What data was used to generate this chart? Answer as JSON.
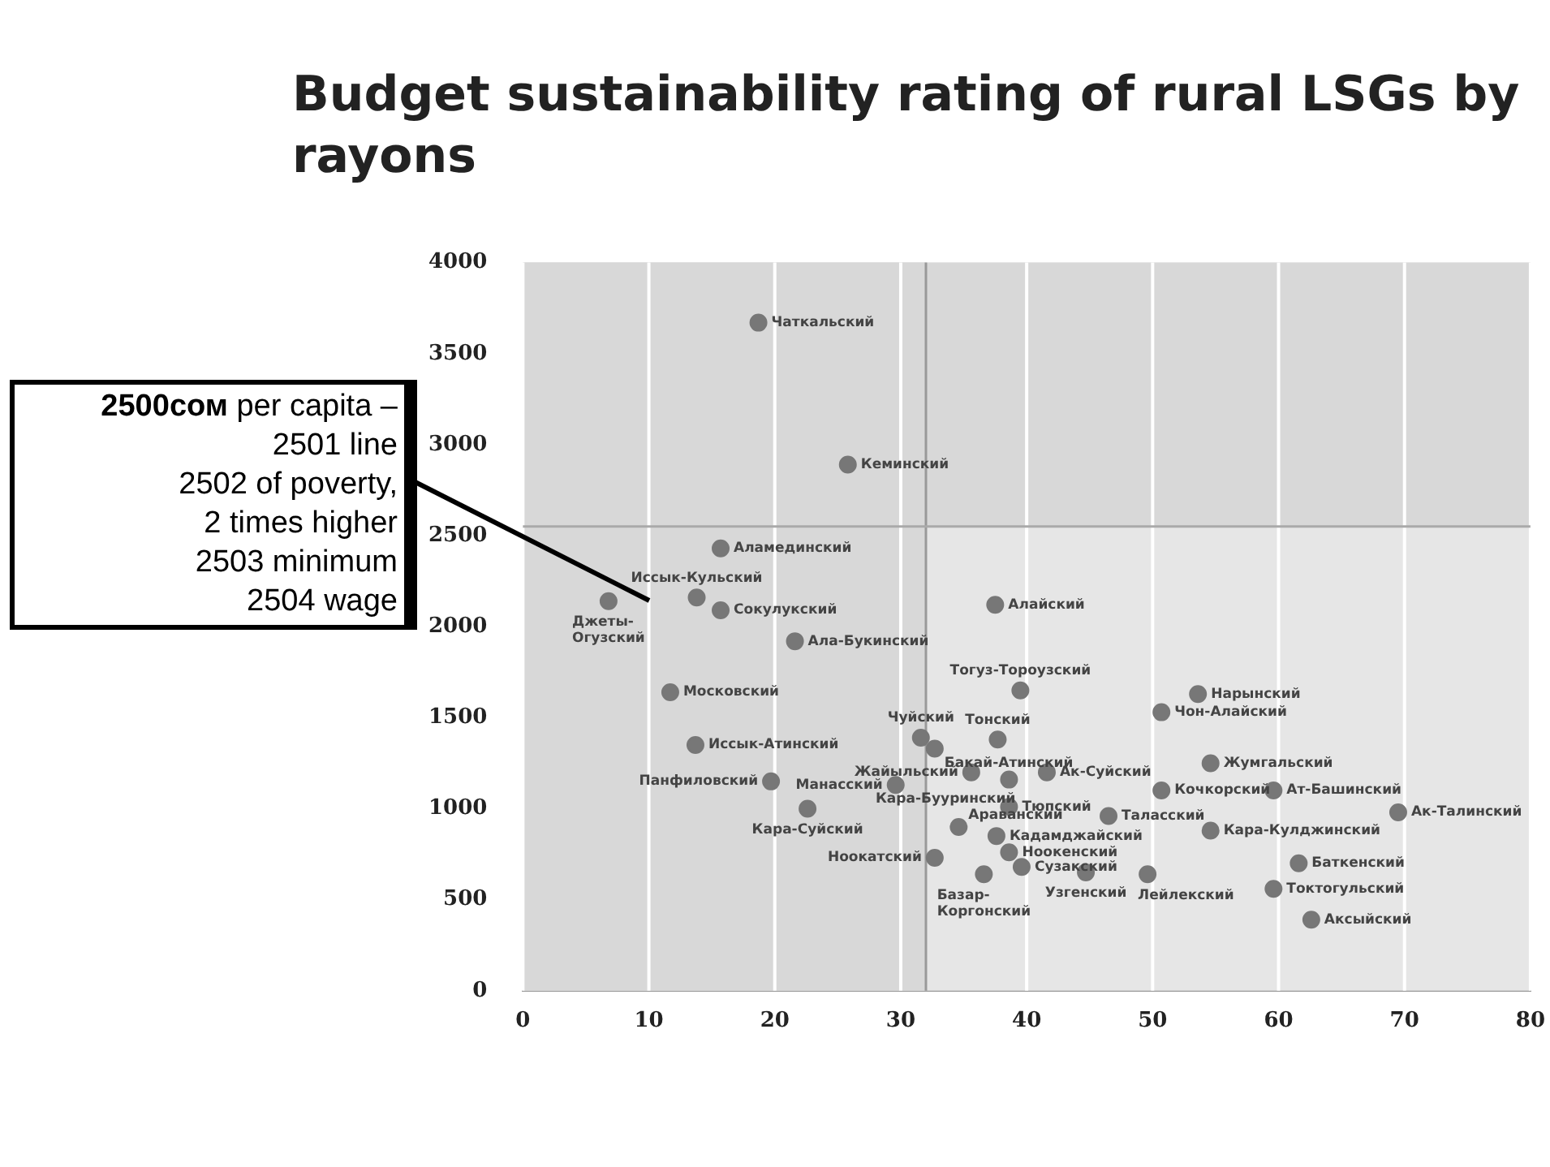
{
  "chart_data": {
    "type": "scatter",
    "title": "Budget sustainability rating of rural LSGs by rayons",
    "x": [
      18.7,
      25.8,
      15.7,
      13.8,
      6.8,
      15.7,
      21.6,
      11.7,
      13.7,
      19.7,
      29.6,
      22.6,
      31.6,
      32.7,
      35.6,
      32.7,
      34.6,
      37.5,
      39.5,
      53.6,
      50.7,
      37.7,
      41.6,
      38.6,
      38.6,
      46.5,
      37.6,
      38.6,
      39.6,
      36.6,
      44.7,
      49.6,
      54.6,
      50.7,
      59.6,
      54.6,
      69.5,
      61.6,
      59.6,
      62.6
    ],
    "series": [
      {
        "color": "#777777",
        "values": [
          3670,
          2890,
          2430,
          2160,
          2140,
          2090,
          1920,
          1640,
          1350,
          1150,
          1130,
          1000,
          1390,
          1330,
          1200,
          730,
          900,
          2120,
          1650,
          1630,
          1530,
          1380,
          1200,
          1160,
          1010,
          960,
          850,
          760,
          680,
          640,
          650,
          640,
          1250,
          1100,
          1100,
          880,
          980,
          700,
          560,
          390
        ]
      }
    ],
    "annotations": [
      {
        "text": "Чаткальский",
        "x": 18.7,
        "y": 3670
      },
      {
        "text": "Кеминский",
        "x": 25.8,
        "y": 2890
      },
      {
        "text": "Аламединский",
        "x": 15.7,
        "y": 2430
      },
      {
        "text": "Иссык-Кульский",
        "x": 13.8,
        "y": 2160
      },
      {
        "text": "Джеты-\nОгузский",
        "x": 6.8,
        "y": 2140
      },
      {
        "text": "Сокулукский",
        "x": 15.7,
        "y": 2090
      },
      {
        "text": "Ала-Букинский",
        "x": 21.6,
        "y": 1920
      },
      {
        "text": "Московский",
        "x": 11.7,
        "y": 1640
      },
      {
        "text": "Иссык-Атинский",
        "x": 13.7,
        "y": 1350
      },
      {
        "text": "Панфиловский",
        "x": 19.7,
        "y": 1150
      },
      {
        "text": "Манасский",
        "x": 29.6,
        "y": 1130
      },
      {
        "text": "Кара-Суйский",
        "x": 22.6,
        "y": 1000
      },
      {
        "text": "Чуйский",
        "x": 31.6,
        "y": 1390
      },
      {
        "text": "Бакай-Атинский",
        "x": 32.7,
        "y": 1330
      },
      {
        "text": "Жайыльский",
        "x": 35.6,
        "y": 1200
      },
      {
        "text": "Ноокатский",
        "x": 32.7,
        "y": 730
      },
      {
        "text": "Араванский",
        "x": 34.6,
        "y": 900
      },
      {
        "text": "Алайский",
        "x": 37.5,
        "y": 2120
      },
      {
        "text": "Тогуз-Тороузский",
        "x": 39.5,
        "y": 1650
      },
      {
        "text": "Нарынский",
        "x": 53.6,
        "y": 1630
      },
      {
        "text": "Чон-Алайский",
        "x": 50.7,
        "y": 1530
      },
      {
        "text": "Тонский",
        "x": 37.7,
        "y": 1380
      },
      {
        "text": "Ак-Суйский",
        "x": 41.6,
        "y": 1200
      },
      {
        "text": "Кара-Бууринский",
        "x": 38.6,
        "y": 1160
      },
      {
        "text": "Тюпский",
        "x": 38.6,
        "y": 1010
      },
      {
        "text": "Таласский",
        "x": 46.5,
        "y": 960
      },
      {
        "text": "Кадамджайский",
        "x": 37.6,
        "y": 850
      },
      {
        "text": "Ноокенский",
        "x": 38.6,
        "y": 760
      },
      {
        "text": "Сузакский",
        "x": 39.6,
        "y": 680
      },
      {
        "text": "Базар-\nКоргонский",
        "x": 36.6,
        "y": 640
      },
      {
        "text": "Узгенский",
        "x": 44.7,
        "y": 650
      },
      {
        "text": "Лейлекский",
        "x": 49.6,
        "y": 640
      },
      {
        "text": "Жумгальский",
        "x": 54.6,
        "y": 1250
      },
      {
        "text": "Кочкорский",
        "x": 50.7,
        "y": 1100
      },
      {
        "text": "Ат-Башинский",
        "x": 59.6,
        "y": 1100
      },
      {
        "text": "Кара-Кулджинский",
        "x": 54.6,
        "y": 880
      },
      {
        "text": "Ак-Талинский",
        "x": 69.5,
        "y": 980
      },
      {
        "text": "Баткенский",
        "x": 61.6,
        "y": 700
      },
      {
        "text": "Токтогульский",
        "x": 59.6,
        "y": 560
      },
      {
        "text": "Аксыйский",
        "x": 62.6,
        "y": 390
      },
      "2500сом per capita –\n2501 line\n2502 of poverty,\n2 times higher\n2503 minimum\n2504 wage"
    ],
    "ref_lines": [
      {
        "axis": "x",
        "value": 32,
        "color": "#999999"
      },
      {
        "axis": "y",
        "value": 2550,
        "color": "#aaaaaa"
      }
    ],
    "bands": [
      {
        "axis": "x",
        "from": 0,
        "to": 32,
        "color": "#d8d8d8"
      },
      {
        "axis": "y",
        "from": 2550,
        "to": 4000,
        "color": "#d8d8d8"
      }
    ],
    "xlim": [
      0,
      80
    ],
    "xticks": [
      0,
      10,
      20,
      30,
      40,
      50,
      60,
      70,
      80
    ],
    "ylim": [
      0,
      4000
    ],
    "yticks": [
      0,
      500,
      1000,
      1500,
      2000,
      2500,
      3000,
      3500,
      4000
    ],
    "grid": "x",
    "legend": false,
    "marker": "circle"
  }
}
